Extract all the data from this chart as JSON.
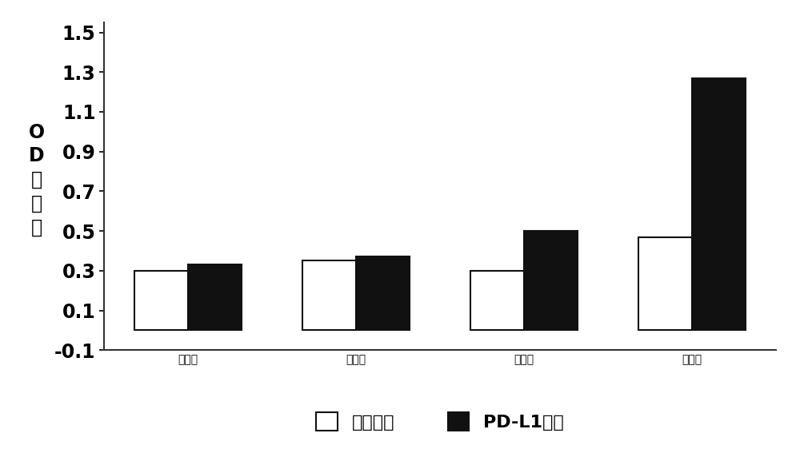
{
  "categories": [
    "对照组",
    "第一轮",
    "第二轮",
    "第三轮"
  ],
  "white_bars": [
    0.3,
    0.35,
    0.3,
    0.47
  ],
  "black_bars": [
    0.33,
    0.37,
    0.5,
    1.27
  ],
  "ylim": [
    -0.1,
    1.55
  ],
  "yticks": [
    -0.1,
    0.1,
    0.3,
    0.5,
    0.7,
    0.9,
    1.1,
    1.3,
    1.5
  ],
  "ytick_labels": [
    "-0.1",
    "0.1",
    "0.3",
    "0.5",
    "0.7",
    "0.9",
    "1.1",
    "1.3",
    "1.5"
  ],
  "ylabel_lines": [
    "O",
    "D",
    "吸",
    "光",
    "値"
  ],
  "legend_labels": [
    "对照抗原",
    "PD-L1抗原"
  ],
  "bar_width": 0.32,
  "white_bar_color": "#ffffff",
  "black_bar_color": "#111111",
  "edge_color": "#111111",
  "background_color": "#ffffff",
  "font_size": 17,
  "tick_font_size": 17,
  "legend_font_size": 16
}
